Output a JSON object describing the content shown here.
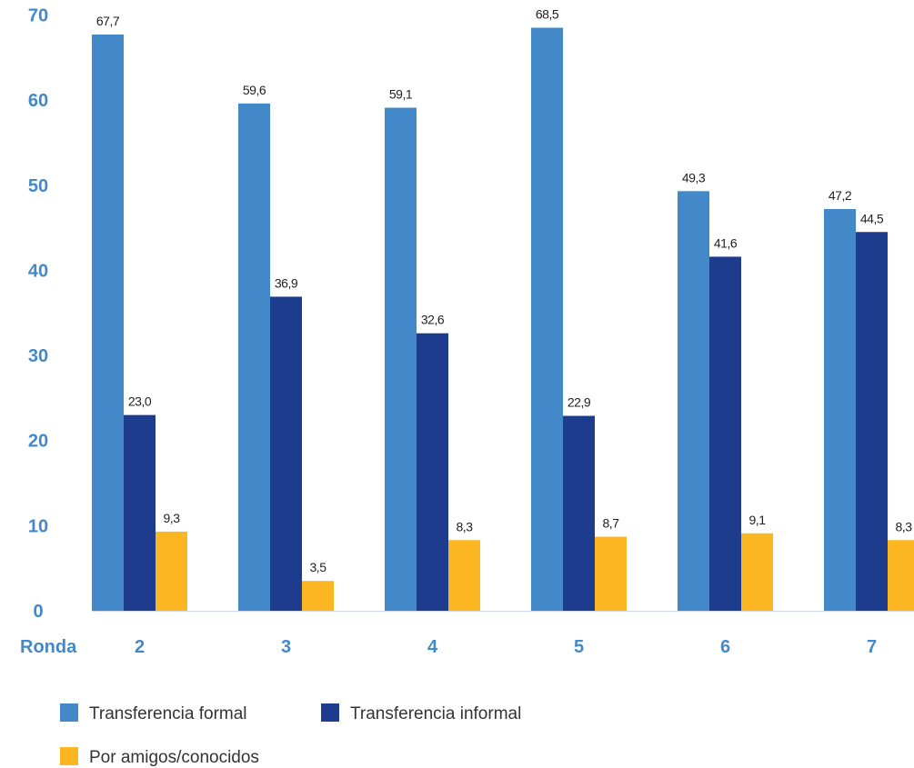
{
  "chart_data": {
    "type": "bar",
    "title": "",
    "xlabel": "Ronda",
    "ylabel": "",
    "ylim": [
      0,
      70
    ],
    "yticks": [
      "0",
      "10",
      "20",
      "30",
      "40",
      "50",
      "60",
      "70"
    ],
    "grid": false,
    "legend_position": "bottom-left",
    "categories": [
      "2",
      "3",
      "4",
      "5",
      "6",
      "7"
    ],
    "series": [
      {
        "name": "Transferencia formal",
        "color": "#4389ca",
        "values": [
          67.7,
          59.6,
          59.1,
          68.5,
          49.3,
          47.2
        ],
        "labels": [
          "67,7",
          "59,6",
          "59,1",
          "68,5",
          "49,3",
          "47,2"
        ]
      },
      {
        "name": "Transferencia informal",
        "color": "#1d3c8e",
        "values": [
          23.0,
          36.9,
          32.6,
          22.9,
          41.6,
          44.5
        ],
        "labels": [
          "23,0",
          "36,9",
          "32,6",
          "22,9",
          "41,6",
          "44,5"
        ]
      },
      {
        "name": "Por amigos/conocidos",
        "color": "#fbb621",
        "values": [
          9.3,
          3.5,
          8.3,
          8.7,
          9.1,
          8.3
        ],
        "labels": [
          "9,3",
          "3,5",
          "8,3",
          "8,7",
          "9,1",
          "8,3"
        ]
      }
    ],
    "axis_color": "#4389ca"
  }
}
